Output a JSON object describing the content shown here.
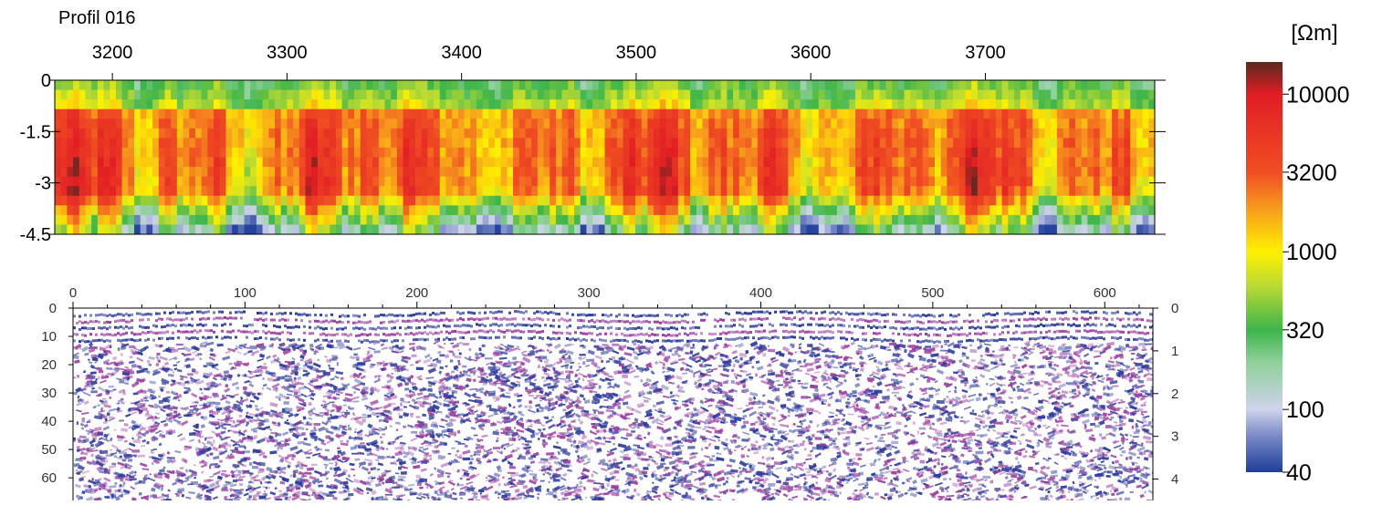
{
  "chart_data": [
    {
      "type": "heatmap",
      "title": "Profil 016",
      "x_ticks": [
        3200,
        3300,
        3400,
        3500,
        3600,
        3700
      ],
      "xlim": [
        3167,
        3797
      ],
      "y_ticks": [
        "0",
        "-1.5",
        "-3",
        "-4.5"
      ],
      "y_values": [
        0,
        -1.5,
        -3,
        -4.5
      ],
      "ylim": [
        0,
        -4.5
      ],
      "colorbar": {
        "unit": "[Ωm]",
        "scale": "log",
        "range": [
          40,
          16000
        ],
        "tick_labels": [
          "10000",
          "3200",
          "1000",
          "320",
          "100",
          "40"
        ],
        "tick_values": [
          10000,
          3200,
          1000,
          320,
          100,
          40
        ],
        "stops": [
          {
            "value": 40,
            "color": "#1f3d9a"
          },
          {
            "value": 70,
            "color": "#7f8fc9"
          },
          {
            "value": 100,
            "color": "#cfd3ec"
          },
          {
            "value": 200,
            "color": "#8fd09a"
          },
          {
            "value": 320,
            "color": "#3db54a"
          },
          {
            "value": 600,
            "color": "#b7d934"
          },
          {
            "value": 1000,
            "color": "#fff100"
          },
          {
            "value": 1800,
            "color": "#f7a21b"
          },
          {
            "value": 3200,
            "color": "#f04e23"
          },
          {
            "value": 10000,
            "color": "#e11d24"
          },
          {
            "value": 16000,
            "color": "#5a2a1e"
          }
        ]
      }
    },
    {
      "type": "heatmap",
      "x_ticks": [
        "0",
        "100",
        "200",
        "300",
        "400",
        "500",
        "600"
      ],
      "xlim": [
        0,
        628
      ],
      "y_left_ticks": [
        "0",
        "10",
        "20",
        "30",
        "40",
        "50",
        "60"
      ],
      "y_left_range": [
        0,
        68
      ],
      "y_right_ticks": [
        "0",
        "1",
        "2",
        "3",
        "4"
      ],
      "y_right_range": [
        0,
        4.5
      ],
      "colors": {
        "positive": "#2b3a9c",
        "negative": "#9b3ea0",
        "neutral": "#ffffff"
      }
    }
  ]
}
